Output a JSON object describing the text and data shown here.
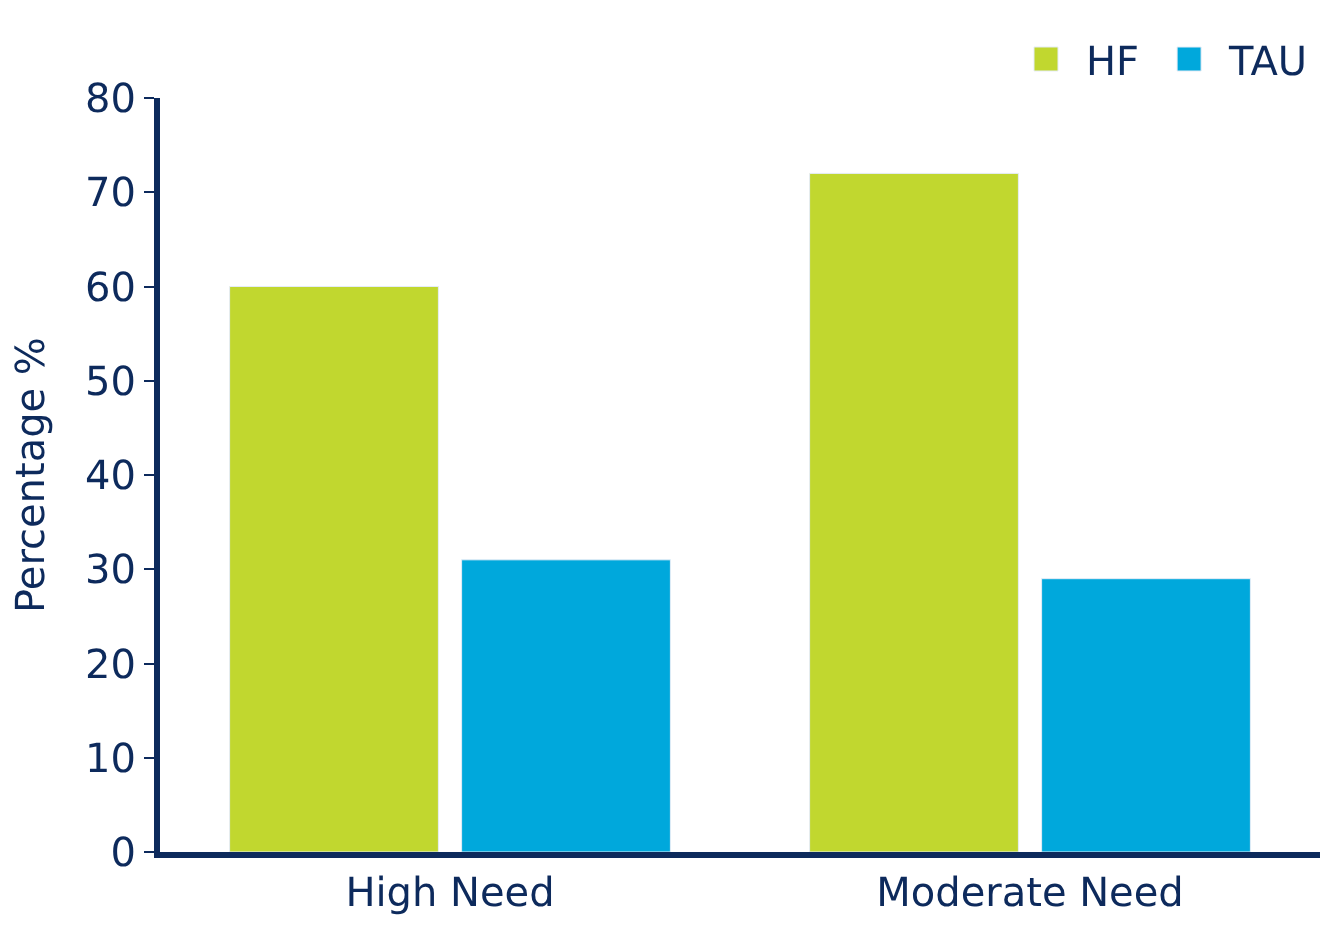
{
  "chart_data": {
    "type": "bar",
    "ylabel": "Percentage %",
    "categories": [
      "High Need",
      "Moderate Need"
    ],
    "series": [
      {
        "name": "HF",
        "color": "#c1d72f",
        "values": [
          60,
          72
        ]
      },
      {
        "name": "TAU",
        "color": "#00a8dc",
        "values": [
          31,
          29
        ]
      }
    ],
    "ylim": [
      0,
      80
    ],
    "yticks": [
      0,
      10,
      20,
      30,
      40,
      50,
      60,
      70,
      80
    ],
    "legend": "top right"
  }
}
